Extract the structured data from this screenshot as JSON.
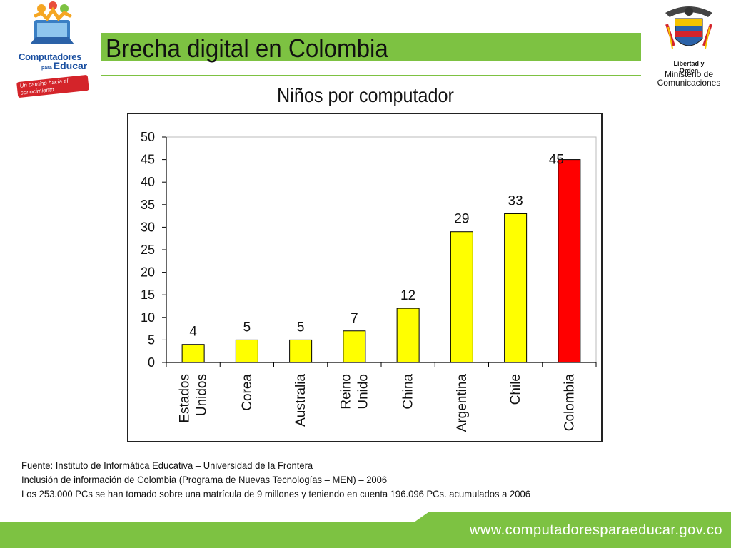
{
  "header": {
    "title": "Brecha digital en Colombia",
    "left_logo": {
      "brand_line1": "Computadores",
      "brand_small": "para",
      "brand_line2": "Educar",
      "slogan": "Un camino hacia el conocimiento"
    },
    "right_logo": {
      "motto": "Libertad y Orden",
      "ministry": "Ministerio de Comunicaciones"
    }
  },
  "colors": {
    "accent": "#7dc242",
    "bar_default": "#ffff00",
    "bar_highlight": "#ff0000"
  },
  "chart_data": {
    "type": "bar",
    "title": "Niños por computador",
    "categories": [
      [
        "Estados",
        "Unidos"
      ],
      [
        "Corea"
      ],
      [
        "Australia"
      ],
      [
        "Reino",
        "Unido"
      ],
      [
        "China"
      ],
      [
        "Argentina"
      ],
      [
        "Chile"
      ],
      [
        "Colombia"
      ]
    ],
    "values": [
      4,
      5,
      5,
      7,
      12,
      29,
      33,
      45
    ],
    "highlight": "Colombia",
    "ylim": [
      0,
      50
    ],
    "yticks": [
      0,
      5,
      10,
      15,
      20,
      25,
      30,
      35,
      40,
      45,
      50
    ],
    "grid": false,
    "xlabel": "",
    "ylabel": ""
  },
  "source": {
    "line1": "Fuente: Instituto de Informática Educativa – Universidad de la Frontera",
    "line2": "Inclusión de información de Colombia (Programa de Nuevas Tecnologías – MEN) – 2006",
    "line3": "Los 253.000 PCs se han tomado sobre una matrícula de 9 millones y teniendo en cuenta 196.096 PCs. acumulados a 2006"
  },
  "footer": {
    "url": "www.computadoresparaeducar.gov.co"
  }
}
